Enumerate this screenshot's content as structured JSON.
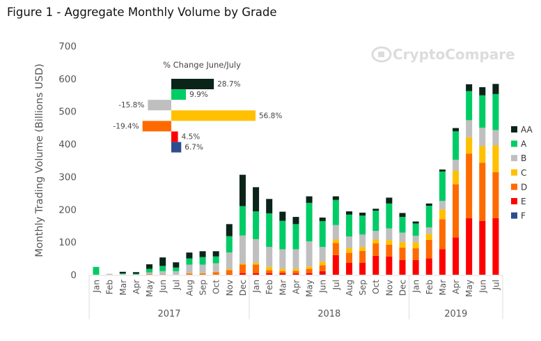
{
  "title": "Figure 1 - Aggregate Monthly Volume by Grade",
  "watermark": "CryptoCompare",
  "chart_data": [
    {
      "type": "bar",
      "stacked": true,
      "ylabel": "Monthly Trading Volume (Billions USD)",
      "xlabel": "",
      "ylim": [
        0,
        700
      ],
      "yticks": [
        0,
        100,
        200,
        300,
        400,
        500,
        600,
        700
      ],
      "grid": false,
      "legend_placement": "right",
      "years": [
        {
          "label": "2017",
          "months": 12
        },
        {
          "label": "2018",
          "months": 12
        },
        {
          "label": "2019",
          "months": 7
        }
      ],
      "categories": [
        "Jan",
        "Feb",
        "Mar",
        "Apr",
        "May",
        "Jun",
        "Jul",
        "Aug",
        "Sep",
        "Oct",
        "Nov",
        "Dec",
        "Jan",
        "Feb",
        "Mar",
        "Apr",
        "May",
        "Jun",
        "Jul",
        "Aug",
        "Sep",
        "Oct",
        "Nov",
        "Dec",
        "Jan",
        "Feb",
        "Mar",
        "Apr",
        "May",
        "Jun",
        "Jul"
      ],
      "series": [
        {
          "name": "F",
          "color": "#2e4d8f",
          "values": [
            0,
            0,
            0,
            0,
            0,
            0,
            0,
            0,
            0,
            0,
            0,
            0,
            0,
            0,
            0,
            0,
            0,
            1,
            0,
            0,
            0,
            0,
            0,
            0,
            0,
            0,
            0,
            0,
            0,
            0,
            0
          ]
        },
        {
          "name": "E",
          "color": "#ff0000",
          "values": [
            0,
            0,
            0,
            0,
            0,
            0,
            0,
            0,
            0,
            0,
            1,
            5,
            5,
            5,
            5,
            4,
            5,
            10,
            60,
            37,
            37,
            58,
            56,
            45,
            45,
            50,
            78,
            114,
            173,
            165,
            173
          ]
        },
        {
          "name": "D",
          "color": "#ff6a00",
          "values": [
            0,
            0,
            0,
            0,
            2,
            1,
            0,
            4,
            4,
            8,
            13,
            26,
            26,
            9,
            6,
            8,
            13,
            18,
            37,
            30,
            36,
            38,
            36,
            38,
            36,
            57,
            92,
            163,
            198,
            178,
            141
          ]
        },
        {
          "name": "C",
          "color": "#ffc000",
          "values": [
            0,
            0,
            0,
            0,
            0,
            0,
            0,
            1,
            1,
            1,
            3,
            3,
            6,
            10,
            7,
            6,
            7,
            11,
            11,
            14,
            12,
            12,
            14,
            17,
            18,
            18,
            30,
            41,
            50,
            51,
            82
          ]
        },
        {
          "name": "B",
          "color": "#bfbfbf",
          "values": [
            0,
            3,
            2,
            1,
            5,
            10,
            11,
            26,
            26,
            26,
            51,
            86,
            72,
            61,
            60,
            60,
            77,
            45,
            44,
            36,
            38,
            26,
            36,
            29,
            20,
            20,
            26,
            34,
            52,
            56,
            47
          ]
        },
        {
          "name": "A",
          "color": "#00cc66",
          "values": [
            24,
            0,
            2,
            2,
            11,
            16,
            11,
            19,
            23,
            21,
            50,
            90,
            85,
            103,
            87,
            77,
            118,
            79,
            77,
            67,
            58,
            62,
            76,
            48,
            38,
            66,
            90,
            87,
            89,
            99,
            110
          ]
        },
        {
          "name": "AA",
          "color": "#0a2419",
          "values": [
            0,
            0,
            5,
            5,
            14,
            26,
            16,
            18,
            18,
            16,
            37,
            96,
            74,
            44,
            28,
            22,
            20,
            11,
            11,
            10,
            9,
            6,
            18,
            12,
            6,
            7,
            6,
            10,
            21,
            25,
            31
          ]
        }
      ]
    },
    {
      "type": "bar",
      "orientation": "horizontal",
      "title": "% Change June/July",
      "categories": [
        "AA",
        "A",
        "B",
        "C",
        "D",
        "E",
        "F"
      ],
      "values": [
        28.7,
        9.9,
        -15.8,
        56.8,
        -19.4,
        4.5,
        6.7
      ],
      "labels": [
        "28.7%",
        "9.9%",
        "-15.8%",
        "56.8%",
        "-19.4%",
        "4.5%",
        "6.7%"
      ],
      "colors": [
        "#0a2419",
        "#00cc66",
        "#bfbfbf",
        "#ffc000",
        "#ff6a00",
        "#ff0000",
        "#2e4d8f"
      ]
    }
  ]
}
